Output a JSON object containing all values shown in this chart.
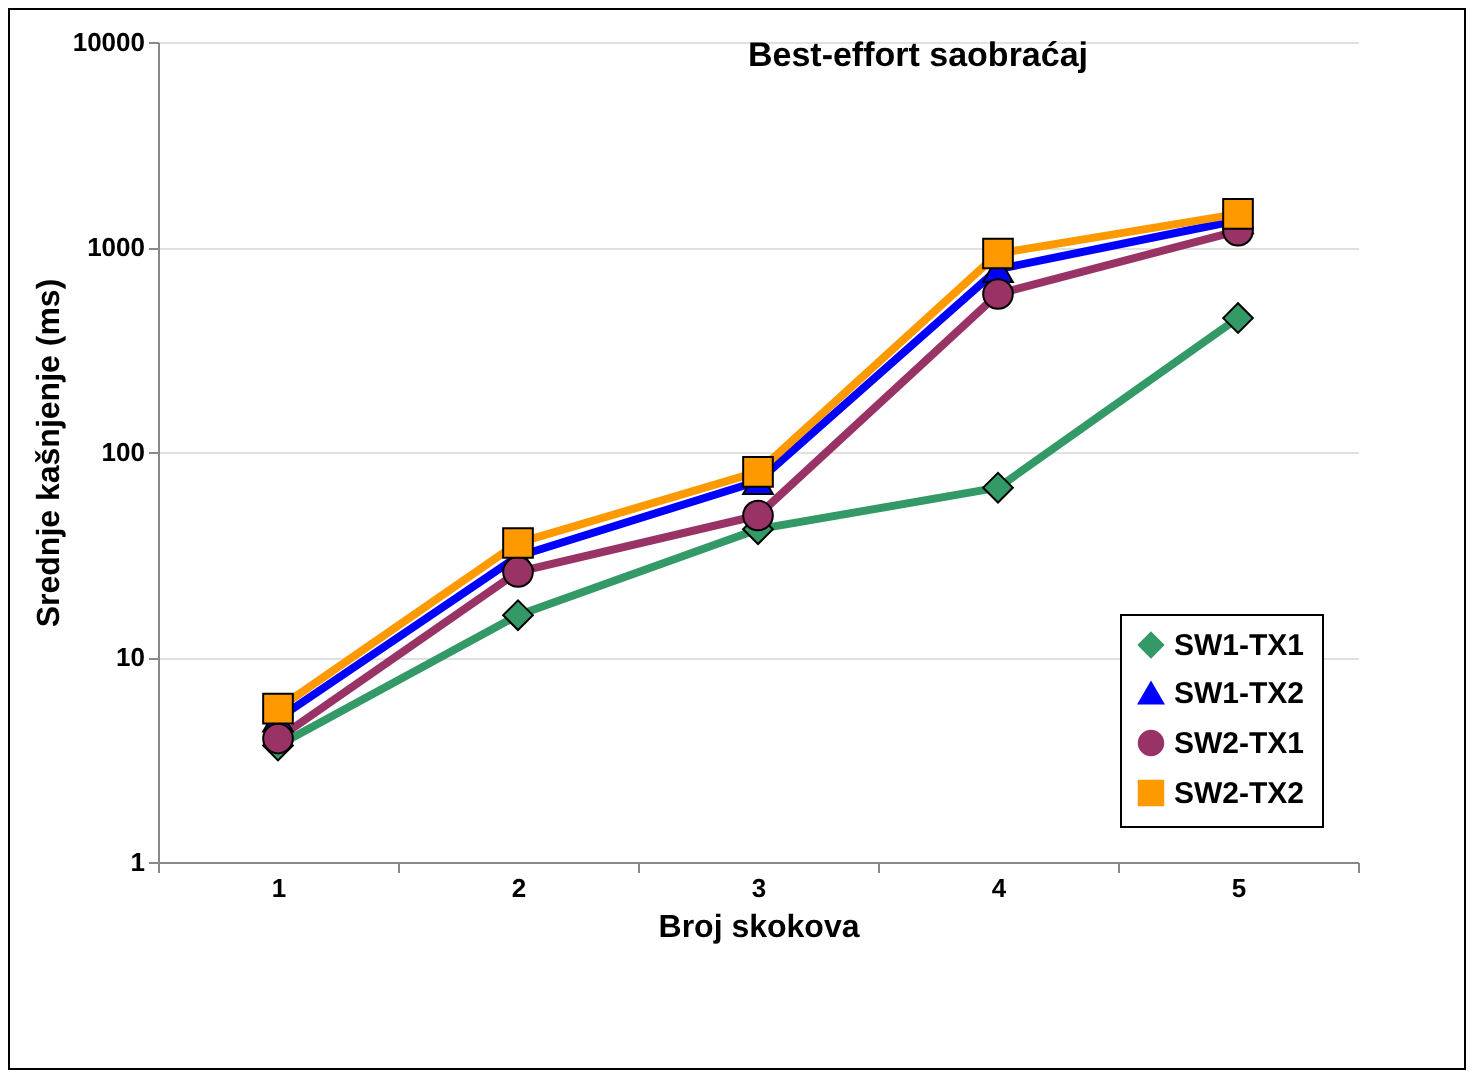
{
  "chart_data": {
    "type": "line",
    "title": "Best-effort saobraćaj",
    "xlabel": "Broj skokova",
    "ylabel": "Srednje kašnjenje (ms)",
    "categories": [
      "1",
      "2",
      "3",
      "4",
      "5"
    ],
    "series": [
      {
        "name": "SW1-TX1",
        "color": "#339966",
        "marker": "diamond",
        "values": [
          3.7,
          16,
          42,
          67,
          450
        ]
      },
      {
        "name": "SW1-TX2",
        "color": "#0000ff",
        "marker": "triangle",
        "values": [
          5,
          31,
          72,
          780,
          1350
        ]
      },
      {
        "name": "SW2-TX1",
        "color": "#993366",
        "marker": "circle",
        "values": [
          4,
          26,
          49,
          590,
          1200
        ]
      },
      {
        "name": "SW2-TX2",
        "color": "#ff9900",
        "marker": "square",
        "values": [
          5.6,
          36,
          80,
          930,
          1450
        ]
      }
    ],
    "log": "y",
    "ylim": [
      1,
      10000
    ],
    "yticks": [
      1,
      10,
      100,
      1000,
      10000
    ],
    "grid": "y",
    "legend": "bottom right"
  }
}
